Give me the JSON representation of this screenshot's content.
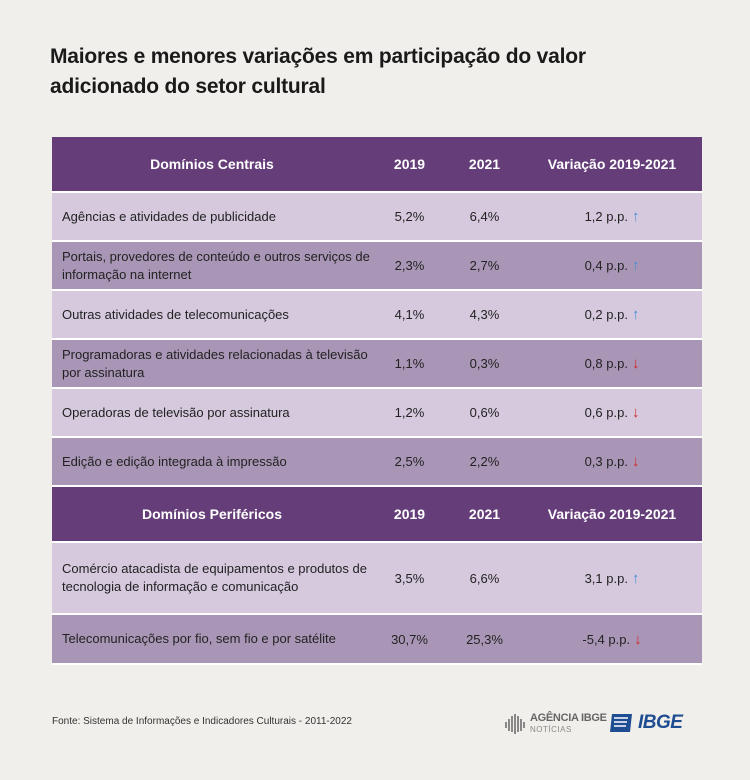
{
  "title": "Maiores e menores variações em participação do valor adicionado do setor cultural",
  "chart_data": {
    "type": "table",
    "sections": [
      {
        "header": {
          "name": "Domínios Centrais",
          "y1": "2019",
          "y2": "2021",
          "var": "Variação 2019-2021"
        },
        "rows": [
          {
            "name": "Agências e atividades de publicidade",
            "y1": "5,2%",
            "y2": "6,4%",
            "var": "1,2 p.p.",
            "dir": "up"
          },
          {
            "name": "Portais, provedores de conteúdo e outros serviços de informação na internet",
            "y1": "2,3%",
            "y2": "2,7%",
            "var": "0,4 p.p.",
            "dir": "up"
          },
          {
            "name": "Outras atividades de telecomunicações",
            "y1": "4,1%",
            "y2": "4,3%",
            "var": "0,2 p.p.",
            "dir": "up"
          },
          {
            "name": "Programadoras e atividades relacionadas à televisão por assinatura",
            "y1": "1,1%",
            "y2": "0,3%",
            "var": "0,8 p.p.",
            "dir": "down"
          },
          {
            "name": "Operadoras de televisão por assinatura",
            "y1": "1,2%",
            "y2": "0,6%",
            "var": "0,6 p.p.",
            "dir": "down"
          },
          {
            "name": "Edição e edição integrada à impressão",
            "y1": "2,5%",
            "y2": "2,2%",
            "var": "0,3 p.p.",
            "dir": "down"
          }
        ]
      },
      {
        "header": {
          "name": "Domínios Periféricos",
          "y1": "2019",
          "y2": "2021",
          "var": "Variação 2019-2021"
        },
        "rows": [
          {
            "name": "Comércio atacadista de equipamentos e produtos de tecnologia de informação e comunicação",
            "y1": "3,5%",
            "y2": "6,6%",
            "var": "3,1 p.p.",
            "dir": "up"
          },
          {
            "name": "Telecomunicações por fio, sem fio e por satélite",
            "y1": "30,7%",
            "y2": "25,3%",
            "var": "-5,4 p.p.",
            "dir": "down"
          }
        ]
      }
    ]
  },
  "colors": {
    "header": "#653e79",
    "row_light": "#d6c9de",
    "row_dark": "#a996b6",
    "arrow_up": "#4a8fd6",
    "arrow_down": "#d42525",
    "ibge_blue": "#1e4d92"
  },
  "footer": {
    "source": "Fonte: Sistema de Informações e Indicadores Culturais - 2011-2022",
    "agencia_main": "AGÊNCIA IBGE",
    "agencia_sub": "NOTÍCIAS",
    "ibge": "IBGE"
  },
  "icons": {
    "up": "arrow-up-icon",
    "down": "arrow-down-icon"
  }
}
